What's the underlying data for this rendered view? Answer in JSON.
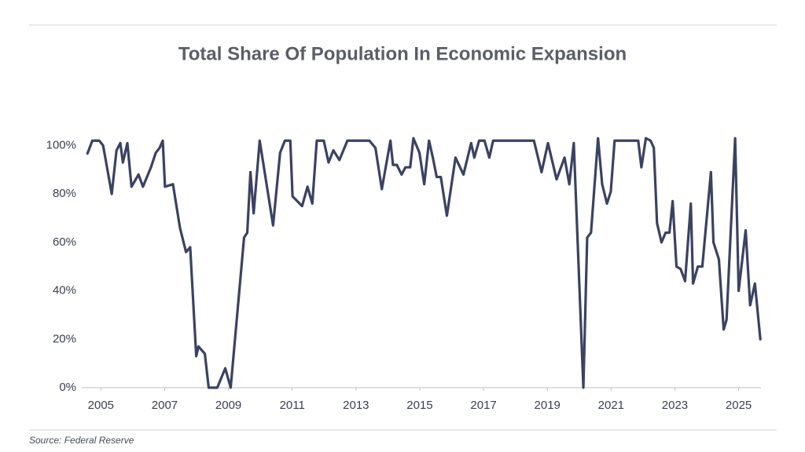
{
  "chart_data": {
    "type": "line",
    "title": "Total Share Of Population In Economic Expansion",
    "source": "Source: Federal Reserve",
    "xlim": [
      2004.4,
      2025.7
    ],
    "xticks": [
      2005,
      2007,
      2009,
      2011,
      2013,
      2015,
      2017,
      2019,
      2021,
      2023,
      2025
    ],
    "ylim": [
      0,
      105
    ],
    "yticks": [
      {
        "value": 0,
        "label": "0%"
      },
      {
        "value": 20,
        "label": "20%"
      },
      {
        "value": 40,
        "label": "40%"
      },
      {
        "value": 60,
        "label": "60%"
      },
      {
        "value": 80,
        "label": "80%"
      },
      {
        "value": 100,
        "label": "100%"
      }
    ],
    "grid": false,
    "series": [
      {
        "name": "Total share of population in economic expansion",
        "color": "#3b4262",
        "x": [
          2004.58,
          2004.73,
          2004.95,
          2005.07,
          2005.34,
          2005.49,
          2005.61,
          2005.69,
          2005.83,
          2005.96,
          2006.18,
          2006.32,
          2006.57,
          2006.72,
          2006.84,
          2006.94,
          2007.01,
          2007.26,
          2007.48,
          2007.67,
          2007.8,
          2007.99,
          2008.06,
          2008.26,
          2008.38,
          2008.65,
          2008.9,
          2009.07,
          2009.49,
          2009.59,
          2009.69,
          2009.79,
          2009.98,
          2010.4,
          2010.62,
          2010.77,
          2010.94,
          2011.01,
          2011.31,
          2011.48,
          2011.63,
          2011.77,
          2011.99,
          2012.14,
          2012.29,
          2012.48,
          2012.73,
          2013.42,
          2013.61,
          2013.81,
          2014.08,
          2014.16,
          2014.28,
          2014.43,
          2014.55,
          2014.7,
          2014.8,
          2014.99,
          2015.14,
          2015.29,
          2015.41,
          2015.53,
          2015.66,
          2015.85,
          2016.12,
          2016.37,
          2016.61,
          2016.71,
          2016.86,
          2017.03,
          2017.18,
          2017.3,
          2018.58,
          2018.82,
          2019.02,
          2019.29,
          2019.54,
          2019.69,
          2019.83,
          2020.13,
          2020.25,
          2020.37,
          2020.59,
          2020.72,
          2020.87,
          2020.99,
          2021.11,
          2021.85,
          2021.95,
          2022.09,
          2022.24,
          2022.34,
          2022.44,
          2022.58,
          2022.71,
          2022.83,
          2022.93,
          2023.05,
          2023.18,
          2023.32,
          2023.5,
          2023.57,
          2023.72,
          2023.86,
          2024.13,
          2024.21,
          2024.38,
          2024.53,
          2024.62,
          2024.89,
          2025.0,
          2025.22,
          2025.36,
          2025.51,
          2025.68
        ],
        "values": [
          96.7,
          102,
          102,
          100,
          80,
          98,
          101,
          93,
          101,
          83,
          88,
          83,
          91,
          97,
          99,
          102,
          83,
          84,
          66,
          56,
          58,
          13,
          17,
          14,
          0,
          0,
          8,
          0,
          62,
          64,
          89,
          72,
          102,
          67,
          97,
          102,
          102,
          79,
          75,
          83,
          76,
          102,
          102,
          93,
          98,
          94,
          102,
          102,
          99,
          82,
          102,
          92,
          92,
          88,
          91,
          91,
          103,
          97,
          84,
          102,
          95,
          87,
          87,
          71,
          95,
          88,
          101,
          95,
          102,
          102,
          95,
          102,
          102,
          89,
          101,
          86,
          95,
          84,
          101,
          0,
          62,
          64,
          103,
          84,
          76,
          81,
          102,
          102,
          91,
          103,
          102,
          99,
          68,
          60,
          64,
          64,
          77,
          50,
          49,
          44,
          76,
          43,
          50,
          50,
          89,
          60,
          53,
          24,
          28,
          103,
          40,
          65,
          34,
          43,
          20
        ]
      }
    ]
  }
}
